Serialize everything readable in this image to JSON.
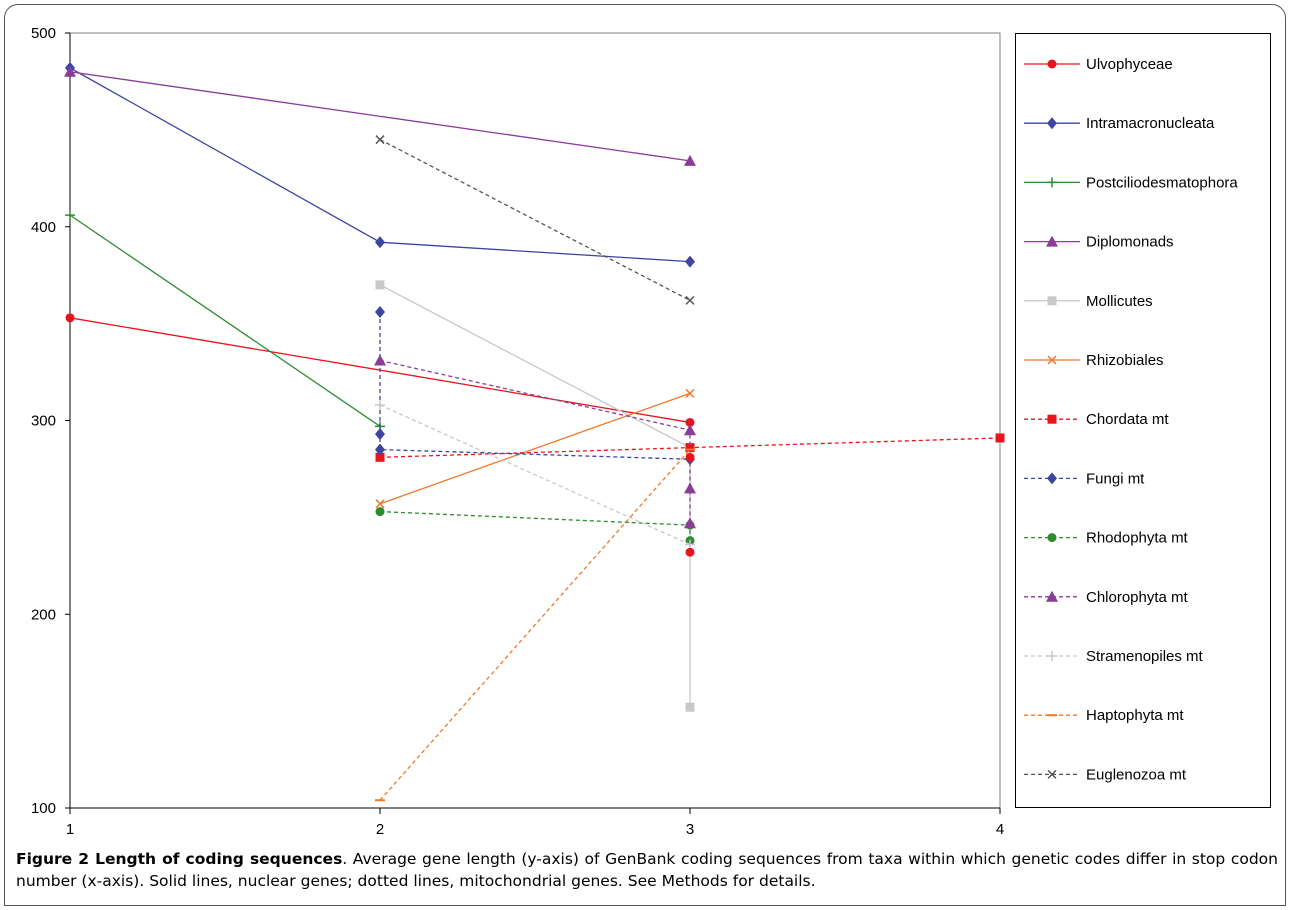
{
  "caption": {
    "label": "Figure 2 Length of coding sequences",
    "text": ". Average gene length (y-axis) of GenBank coding sequences from taxa within which genetic codes differ in stop codon number (x-axis). Solid lines, nuclear genes; dotted lines, mitochondrial genes. See Methods for details."
  },
  "chart_data": {
    "type": "line",
    "xlim": [
      1,
      4
    ],
    "ylim": [
      100,
      500
    ],
    "x_ticks": [
      "1",
      "2",
      "3",
      "4"
    ],
    "y_ticks": [
      "100",
      "200",
      "300",
      "400",
      "500"
    ],
    "grid": false,
    "legend_position": "right",
    "series": [
      {
        "name": "Ulvophyceae",
        "color": "#e8141c",
        "dash": false,
        "marker": "circle",
        "points": [
          [
            1,
            353
          ],
          [
            3,
            299
          ]
        ]
      },
      {
        "name": "Intramacronucleata",
        "color": "#3c46a0",
        "dash": false,
        "marker": "diamond",
        "points": [
          [
            1,
            482
          ],
          [
            2,
            392
          ],
          [
            3,
            382
          ]
        ]
      },
      {
        "name": "Postciliodesmatophora",
        "color": "#2e8b2e",
        "dash": false,
        "marker": "plus",
        "points": [
          [
            1,
            406
          ],
          [
            2,
            297
          ]
        ]
      },
      {
        "name": "Diplomonads",
        "color": "#8a3c98",
        "dash": false,
        "marker": "triangle",
        "points": [
          [
            1,
            480
          ],
          [
            3,
            434
          ]
        ]
      },
      {
        "name": "Mollicutes",
        "color": "#c8c8c8",
        "dash": false,
        "marker": "square",
        "points": [
          [
            2,
            370
          ],
          [
            3,
            286
          ],
          [
            3,
            152
          ]
        ]
      },
      {
        "name": "Rhizobiales",
        "color": "#f07828",
        "dash": false,
        "marker": "x",
        "points": [
          [
            2,
            257
          ],
          [
            3,
            314
          ]
        ]
      },
      {
        "name": "Chordata mt",
        "color": "#e8141c",
        "dash": true,
        "marker": "square",
        "points": [
          [
            2,
            281
          ],
          [
            3,
            286
          ],
          [
            4,
            291
          ]
        ]
      },
      {
        "name": "Fungi mt",
        "color": "#3c46a0",
        "dash": true,
        "marker": "diamond",
        "points": [
          [
            2,
            356
          ],
          [
            2,
            293
          ],
          [
            2,
            285
          ],
          [
            3,
            280
          ]
        ]
      },
      {
        "name": "Rhodophyta mt",
        "color": "#2e8b2e",
        "dash": true,
        "marker": "circle",
        "points": [
          [
            2,
            253
          ],
          [
            3,
            246
          ],
          [
            3,
            238
          ]
        ]
      },
      {
        "name": "Chlorophyta mt",
        "color": "#8a3c98",
        "dash": true,
        "marker": "triangle",
        "points": [
          [
            2,
            331
          ],
          [
            3,
            295
          ],
          [
            3,
            265
          ],
          [
            3,
            247
          ]
        ]
      },
      {
        "name": "Stramenopiles mt",
        "color": "#c8c8c8",
        "dash": true,
        "marker": "plus",
        "points": [
          [
            2,
            308
          ],
          [
            3,
            236
          ]
        ]
      },
      {
        "name": "Haptophyta mt",
        "color": "#f07828",
        "dash": true,
        "marker": "dash",
        "points": [
          [
            2,
            104
          ],
          [
            3,
            285
          ]
        ]
      },
      {
        "name": "Euglenozoa mt",
        "color": "#555555",
        "dash": true,
        "marker": "x",
        "points": [
          [
            2,
            445
          ],
          [
            3,
            362
          ]
        ]
      }
    ],
    "extra_points": [
      {
        "series": "Ulvophyceae",
        "x": 3,
        "y": 232
      },
      {
        "series": "Ulvophyceae",
        "x": 3,
        "y": 281
      }
    ]
  }
}
